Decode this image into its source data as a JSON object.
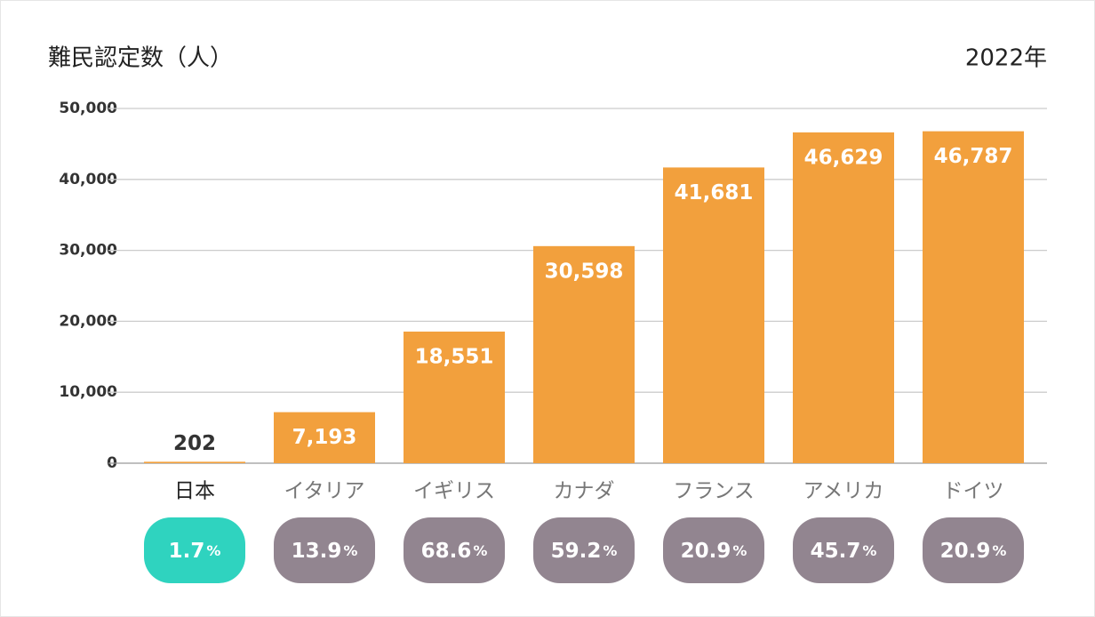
{
  "chart_data": {
    "type": "bar",
    "title": "難民認定数（人）",
    "subtitle": "2022年",
    "categories": [
      "日本",
      "イタリア",
      "イギリス",
      "カナダ",
      "フランス",
      "アメリカ",
      "ドイツ"
    ],
    "values": [
      202,
      7193,
      18551,
      30598,
      41681,
      46629,
      46787
    ],
    "value_labels": [
      "202",
      "7,193",
      "18,551",
      "30,598",
      "41,681",
      "46,629",
      "46,787"
    ],
    "color": "#f2a03d",
    "rates": [
      1.7,
      13.9,
      68.6,
      59.2,
      20.9,
      45.7,
      20.9
    ],
    "rate_unit": "%",
    "rate_colors": [
      "#2fd3bf",
      "#928590",
      "#928590",
      "#928590",
      "#928590",
      "#928590",
      "#928590"
    ],
    "ylim": [
      0,
      50000
    ],
    "yticks": [
      0,
      {
        "value": 10000,
        "label": "10,000"
      },
      {
        "value": 20000,
        "label": "20,000"
      },
      {
        "value": 30000,
        "label": "30,000"
      },
      {
        "value": 40000,
        "label": "40,000"
      },
      {
        "value": 50000,
        "label": "50,000"
      }
    ],
    "grid": true
  }
}
